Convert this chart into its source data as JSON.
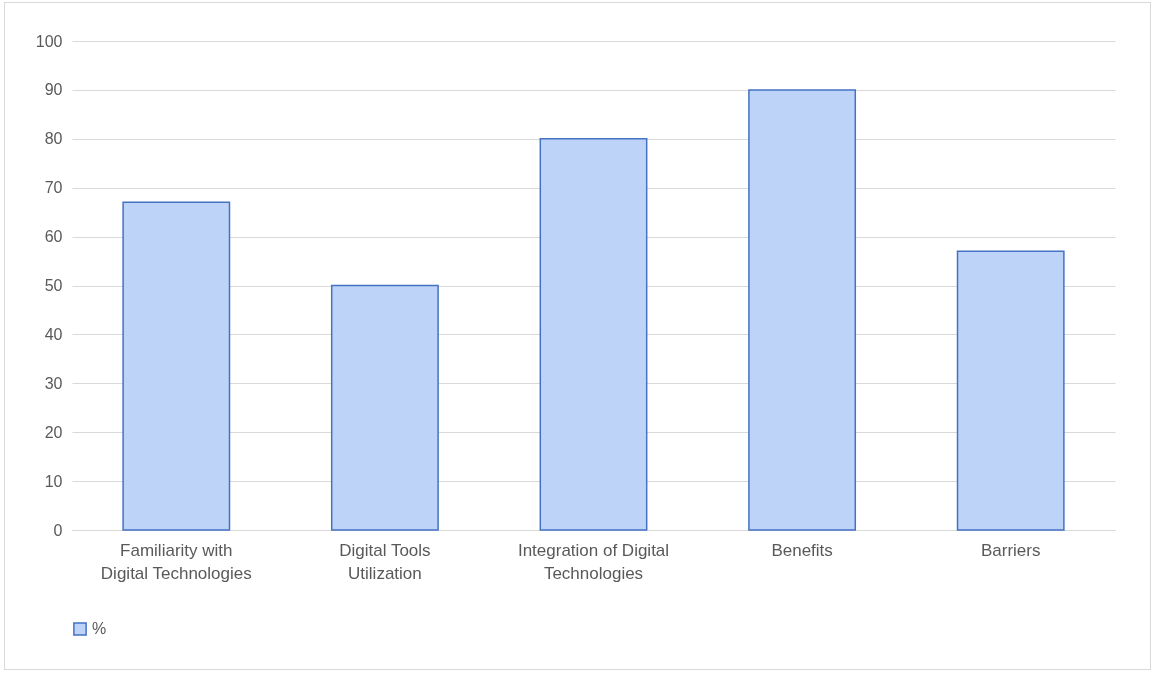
{
  "chart_data": {
    "type": "bar",
    "categories": [
      "Familiarity with Digital Technologies",
      "Digital Tools Utilization",
      "Integration of Digital Technologies",
      "Benefits",
      "Barriers"
    ],
    "series": [
      {
        "name": "%",
        "color": "#bed3f8",
        "values": [
          67,
          50,
          80,
          90,
          57
        ]
      }
    ],
    "ylim": [
      0,
      100
    ],
    "yticks": [
      0,
      10,
      20,
      30,
      40,
      50,
      60,
      70,
      80,
      90,
      100
    ],
    "grid": "y",
    "legend": "bottom"
  }
}
